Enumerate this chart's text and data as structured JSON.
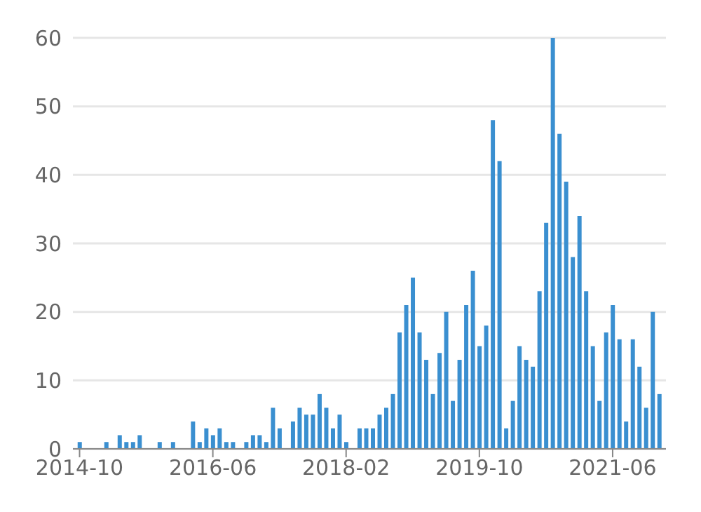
{
  "chart_data": {
    "type": "bar",
    "x": [
      "2014-10",
      "2014-11",
      "2014-12",
      "2015-01",
      "2015-02",
      "2015-03",
      "2015-04",
      "2015-05",
      "2015-06",
      "2015-07",
      "2015-08",
      "2015-09",
      "2015-10",
      "2015-11",
      "2015-12",
      "2016-01",
      "2016-02",
      "2016-03",
      "2016-04",
      "2016-05",
      "2016-06",
      "2016-07",
      "2016-08",
      "2016-09",
      "2016-10",
      "2016-11",
      "2016-12",
      "2017-01",
      "2017-02",
      "2017-03",
      "2017-04",
      "2017-05",
      "2017-06",
      "2017-07",
      "2017-08",
      "2017-09",
      "2017-10",
      "2017-11",
      "2017-12",
      "2018-01",
      "2018-02",
      "2018-03",
      "2018-04",
      "2018-05",
      "2018-06",
      "2018-07",
      "2018-08",
      "2018-09",
      "2018-10",
      "2018-11",
      "2018-12",
      "2019-01",
      "2019-02",
      "2019-03",
      "2019-04",
      "2019-05",
      "2019-06",
      "2019-07",
      "2019-08",
      "2019-09",
      "2019-10",
      "2019-11",
      "2019-12",
      "2020-01",
      "2020-02",
      "2020-03",
      "2020-04",
      "2020-05",
      "2020-06",
      "2020-07",
      "2020-08",
      "2020-09",
      "2020-10",
      "2020-11",
      "2020-12",
      "2021-01",
      "2021-02",
      "2021-03",
      "2021-04",
      "2021-05",
      "2021-06",
      "2021-07",
      "2021-08",
      "2021-09",
      "2021-10",
      "2021-11",
      "2021-12",
      "2022-01"
    ],
    "values": [
      1,
      0,
      0,
      0,
      1,
      0,
      2,
      1,
      1,
      2,
      0,
      0,
      1,
      0,
      1,
      0,
      0,
      4,
      1,
      3,
      2,
      3,
      1,
      1,
      0,
      1,
      2,
      2,
      1,
      6,
      3,
      0,
      4,
      6,
      5,
      5,
      8,
      6,
      3,
      5,
      1,
      0,
      3,
      3,
      3,
      5,
      6,
      8,
      17,
      21,
      25,
      17,
      13,
      8,
      14,
      20,
      7,
      13,
      21,
      26,
      15,
      18,
      48,
      42,
      3,
      7,
      15,
      13,
      12,
      23,
      33,
      60,
      46,
      39,
      28,
      34,
      23,
      15,
      7,
      17,
      21,
      16,
      4,
      16,
      12,
      6,
      20,
      8
    ],
    "color": "#3a8fd0",
    "xlim": [
      "2014-09",
      "2022-02"
    ],
    "xticks": [
      "2014-10",
      "2016-06",
      "2018-02",
      "2019-10",
      "2021-06"
    ],
    "ylim": [
      0,
      60
    ],
    "yticks": [
      0,
      10,
      20,
      30,
      40,
      50,
      60
    ],
    "grid": "y"
  }
}
